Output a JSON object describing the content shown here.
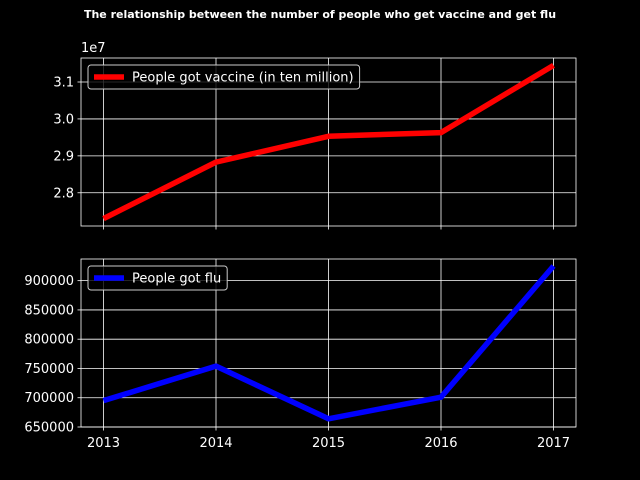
{
  "chart_data": [
    {
      "type": "line",
      "title": "The relationship between the number of people who get vaccine and get flu",
      "x": [
        2013,
        2014,
        2015,
        2016,
        2017
      ],
      "series": [
        {
          "name": "People got vaccine (in ten million)",
          "color": "#ff0000",
          "values": [
            27300000,
            28830000,
            29530000,
            29630000,
            31450000
          ]
        }
      ],
      "ylim": [
        27100000,
        31650000
      ],
      "yticks": [
        28000000,
        29000000,
        30000000,
        31000000
      ],
      "ytick_labels": [
        "2.8",
        "2.9",
        "3.0",
        "3.1"
      ],
      "y_offset_text": "1e7",
      "xlim": [
        2012.8,
        2017.2
      ],
      "grid": true,
      "legend_position": "upper-left",
      "background": "#000000",
      "foreground": "#ffffff"
    },
    {
      "type": "line",
      "x": [
        2013,
        2014,
        2015,
        2016,
        2017
      ],
      "xticks": [
        2013,
        2014,
        2015,
        2016,
        2017
      ],
      "xtick_labels": [
        "2013",
        "2014",
        "2015",
        "2016",
        "2017"
      ],
      "series": [
        {
          "name": "People got flu",
          "color": "#0000ff",
          "values": [
            695000,
            754000,
            664000,
            701000,
            925000
          ]
        }
      ],
      "ylim": [
        650000,
        937000
      ],
      "yticks": [
        650000,
        700000,
        750000,
        800000,
        850000,
        900000
      ],
      "ytick_labels": [
        "650000",
        "700000",
        "750000",
        "800000",
        "850000",
        "900000"
      ],
      "xlim": [
        2012.8,
        2017.2
      ],
      "grid": true,
      "legend_position": "upper-left",
      "background": "#000000",
      "foreground": "#ffffff"
    }
  ]
}
